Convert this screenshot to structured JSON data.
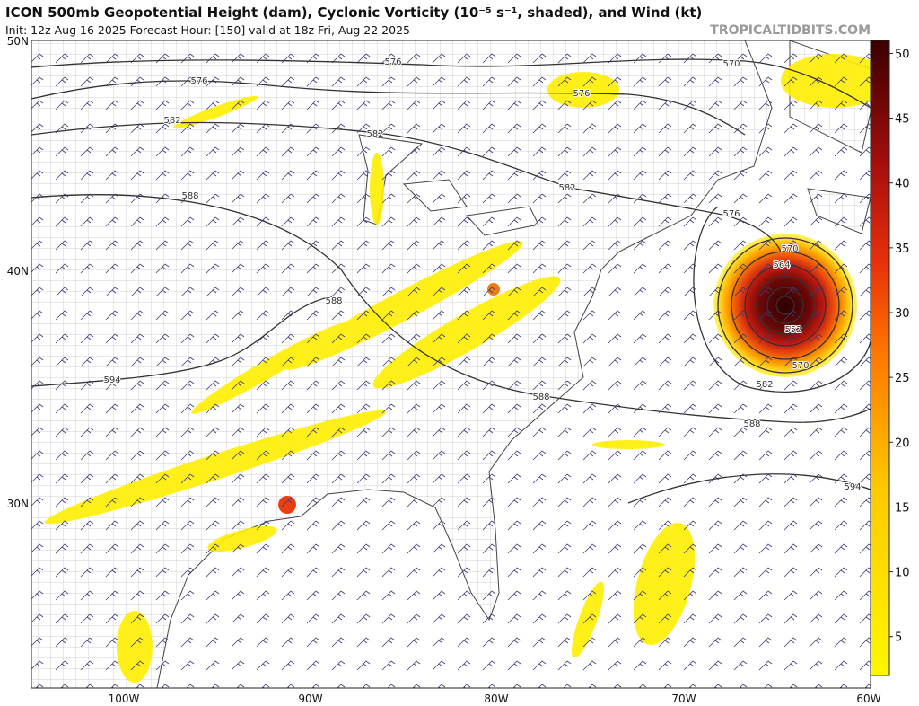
{
  "header": {
    "title": "ICON 500mb Geopotential Height (dam), Cyclonic Vorticity (10⁻⁵ s⁻¹, shaded), and Wind (kt)",
    "subtitle": "Init: 12z Aug 16 2025   Forecast Hour: [150]   valid at 18z Fri, Aug 22 2025",
    "site": "TROPICALTIDBITS.COM"
  },
  "map": {
    "lat_labels": [
      "50N",
      "40N",
      "30N"
    ],
    "lon_labels": [
      "100W",
      "90W",
      "80W",
      "70W",
      "60W"
    ],
    "contour_labels": [
      576,
      576,
      576,
      570,
      582,
      582,
      582,
      588,
      576,
      570,
      564,
      588,
      552,
      594,
      570,
      582,
      588,
      588,
      594
    ]
  },
  "colorbar": {
    "range": [
      2,
      51
    ],
    "ticks": [
      5,
      10,
      15,
      20,
      25,
      30,
      35,
      40,
      45,
      50
    ]
  }
}
